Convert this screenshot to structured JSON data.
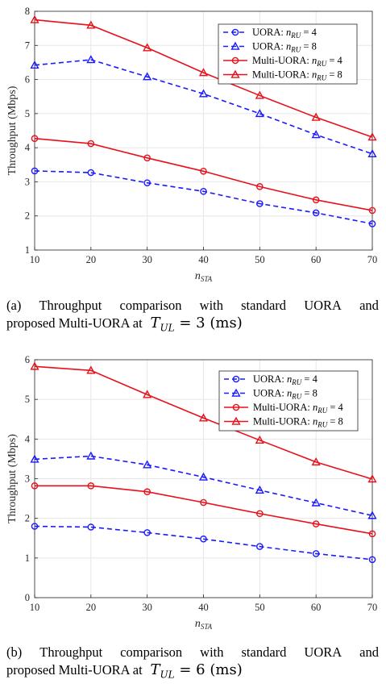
{
  "chart_data": [
    {
      "panel_id": "a",
      "type": "line",
      "xlabel": "n_STA",
      "ylabel": "Throughput (Mbps)",
      "x": [
        10,
        20,
        30,
        40,
        50,
        60,
        70
      ],
      "xlim": [
        10,
        70
      ],
      "ylim": [
        1,
        8
      ],
      "xticks": [
        10,
        20,
        30,
        40,
        50,
        60,
        70
      ],
      "yticks": [
        1,
        2,
        3,
        4,
        5,
        6,
        7,
        8
      ],
      "grid": true,
      "legend_position": "top-right",
      "series": [
        {
          "name": "UORA: n_RU = 4",
          "color": "#1a1aff",
          "dash": true,
          "marker": "circle",
          "values": [
            3.32,
            3.27,
            2.97,
            2.72,
            2.36,
            2.09,
            1.77
          ]
        },
        {
          "name": "UORA: n_RU = 8",
          "color": "#1a1aff",
          "dash": true,
          "marker": "triangle",
          "values": [
            6.42,
            6.58,
            6.08,
            5.58,
            5.0,
            4.38,
            3.82
          ]
        },
        {
          "name": "Multi-UORA: n_RU = 4",
          "color": "#e8101a",
          "dash": false,
          "marker": "circle",
          "values": [
            4.27,
            4.12,
            3.7,
            3.31,
            2.86,
            2.47,
            2.16
          ]
        },
        {
          "name": "Multi-UORA: n_RU = 8",
          "color": "#e8101a",
          "dash": false,
          "marker": "triangle",
          "values": [
            7.75,
            7.59,
            6.93,
            6.2,
            5.53,
            4.89,
            4.31
          ]
        }
      ]
    },
    {
      "panel_id": "b",
      "type": "line",
      "xlabel": "n_STA",
      "ylabel": "Throughput (Mbps)",
      "x": [
        10,
        20,
        30,
        40,
        50,
        60,
        70
      ],
      "xlim": [
        10,
        70
      ],
      "ylim": [
        0,
        6
      ],
      "xticks": [
        10,
        20,
        30,
        40,
        50,
        60,
        70
      ],
      "yticks": [
        0,
        1,
        2,
        3,
        4,
        5,
        6
      ],
      "grid": true,
      "legend_position": "top-right",
      "series": [
        {
          "name": "UORA: n_RU = 4",
          "color": "#1a1aff",
          "dash": true,
          "marker": "circle",
          "values": [
            1.8,
            1.78,
            1.64,
            1.48,
            1.29,
            1.11,
            0.96
          ]
        },
        {
          "name": "UORA: n_RU = 8",
          "color": "#1a1aff",
          "dash": true,
          "marker": "triangle",
          "values": [
            3.49,
            3.57,
            3.35,
            3.04,
            2.71,
            2.39,
            2.07
          ]
        },
        {
          "name": "Multi-UORA: n_RU = 4",
          "color": "#e8101a",
          "dash": false,
          "marker": "circle",
          "values": [
            2.82,
            2.82,
            2.67,
            2.4,
            2.12,
            1.86,
            1.61
          ]
        },
        {
          "name": "Multi-UORA: n_RU = 8",
          "color": "#e8101a",
          "dash": false,
          "marker": "triangle",
          "values": [
            5.83,
            5.73,
            5.12,
            4.53,
            3.97,
            3.42,
            2.99
          ]
        }
      ]
    }
  ],
  "captions": {
    "a": {
      "label": "(a)",
      "words": [
        "Throughput",
        "comparison",
        "with",
        "standard",
        "UORA",
        "and"
      ],
      "line2_text": "proposed Multi-UORA at",
      "math_var": "T",
      "math_sub": "UL",
      "math_value": " = 3",
      "math_unit": "(ms)"
    },
    "b": {
      "label": "(b)",
      "words": [
        "Throughput",
        "comparison",
        "with",
        "standard",
        "UORA",
        "and"
      ],
      "line2_text": "proposed Multi-UORA at",
      "math_var": "T",
      "math_sub": "UL",
      "math_value": " = 6",
      "math_unit": "(ms)"
    }
  }
}
